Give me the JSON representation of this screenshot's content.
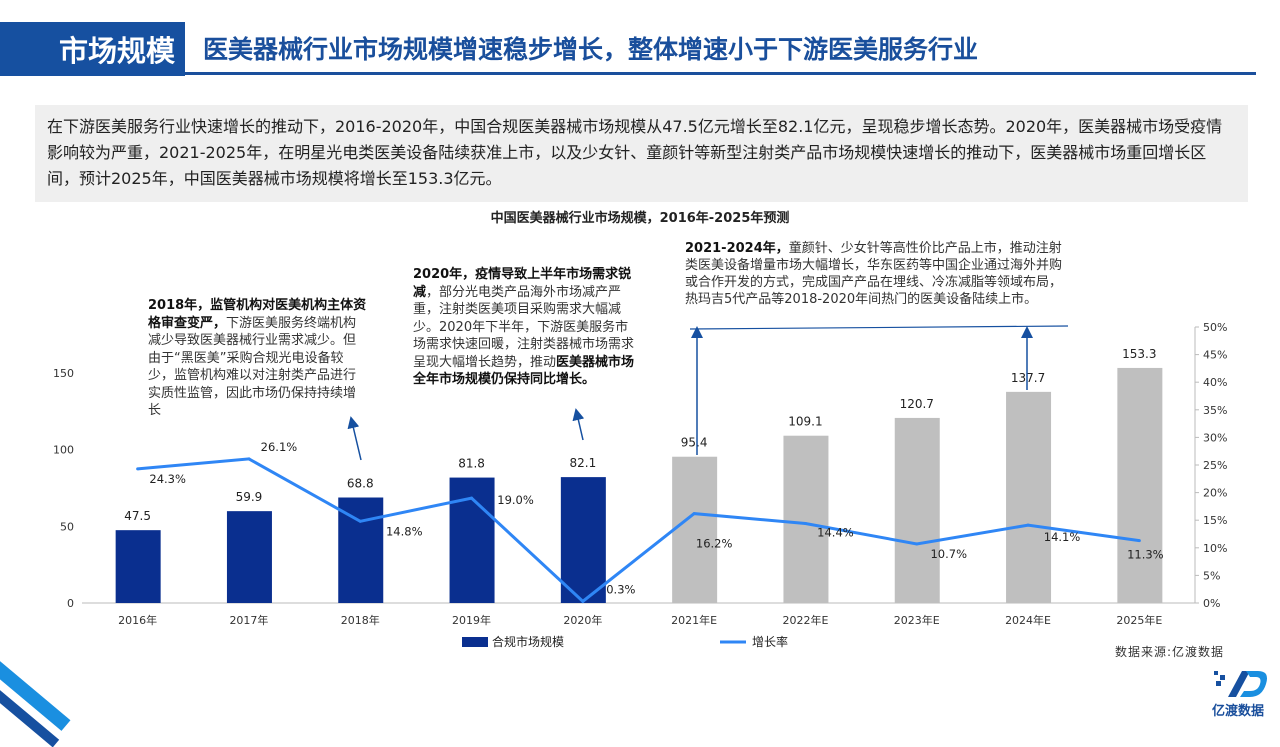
{
  "header": {
    "section": "市场规模",
    "title": "医美器械行业市场规模增速稳步增长，整体增速小于下游医美服务行业"
  },
  "intro": "在下游医美服务行业快速增长的推动下，2016-2020年，中国合规医美器械市场规模从47.5亿元增长至82.1亿元，呈现稳步增长态势。2020年，医美器械市场受疫情影响较为严重，2021-2025年，在明星光电类医美设备陆续获准上市，以及少女针、童颜针等新型注射类产品市场规模快速增长的推动下，医美器械市场重回增长区间，预计2025年，中国医美器械市场规模将增长至153.3亿元。",
  "notes": {
    "n2018_bold": "2018年，监管机构对医美机构主体资格审查变严，",
    "n2018_rest": "下游医美服务终端机构减少导致医美器械行业需求减少。但由于“黑医美”采购合规光电设备较少，监管机构难以对注射类产品进行实质性监管，因此市场仍保持持续增长",
    "n2020_bold1": "2020年，疫情导致上半年市场需求锐减",
    "n2020_mid": "，部分光电类产品海外市场减产严重，注射类医美项目采购需求大幅减少。2020年下半年，下游医美服务市场需求快速回暖，注射类器械市场需求呈现大幅增长趋势，推动",
    "n2020_bold2": "医美器械市场全年市场规模仍保持同比增长。",
    "n2021_bold": "2021-2024年，",
    "n2021_rest": "童颜针、少女针等高性价比产品上市，推动注射类医美设备增量市场大幅增长，华东医药等中国企业通过海外并购或合作开发的方式，完成国产产品在埋线、冷冻减脂等领域布局，热玛吉5代产品等2018-2020年间热门的医美设备陆续上市。"
  },
  "source": "数据来源:亿渡数据",
  "logo_text": "亿渡数据",
  "colors": {
    "bar_actual": "#0a2f8f",
    "bar_forecast": "#bfbfbf",
    "line": "#2f86f5",
    "header": "#1650a0"
  },
  "chart_data": {
    "type": "bar+line",
    "title": "中国医美器械行业市场规模，2016年-2025年预测",
    "categories": [
      "2016年",
      "2017年",
      "2018年",
      "2019年",
      "2020年",
      "2021年E",
      "2022年E",
      "2023年E",
      "2024年E",
      "2025年E"
    ],
    "series": [
      {
        "name": "合规市场规模",
        "type": "bar",
        "axis": "left",
        "values": [
          47.5,
          59.9,
          68.8,
          81.8,
          82.1,
          95.4,
          109.1,
          120.7,
          137.7,
          153.3
        ],
        "labels": [
          "47.5",
          "59.9",
          "68.8",
          "81.8",
          "82.1",
          "95.4",
          "109.1",
          "120.7",
          "137.7",
          "153.3"
        ]
      },
      {
        "name": "增长率",
        "type": "line",
        "axis": "right",
        "values": [
          24.3,
          26.1,
          14.8,
          19.0,
          0.3,
          16.2,
          14.4,
          10.7,
          14.1,
          11.3
        ],
        "labels": [
          "24.3%",
          "26.1%",
          "14.8%",
          "19.0%",
          "0.3%",
          "16.2%",
          "14.4%",
          "10.7%",
          "14.1%",
          "11.3%"
        ]
      }
    ],
    "forecast_from_index": 5,
    "ylim_left": [
      0,
      180
    ],
    "yticks_left": [
      "0",
      "50",
      "100",
      "150"
    ],
    "ylim_right": [
      0,
      50
    ],
    "yticks_right": [
      "0%",
      "5%",
      "10%",
      "15%",
      "20%",
      "25%",
      "30%",
      "35%",
      "40%",
      "45%",
      "50%"
    ],
    "legend": "bottom"
  }
}
